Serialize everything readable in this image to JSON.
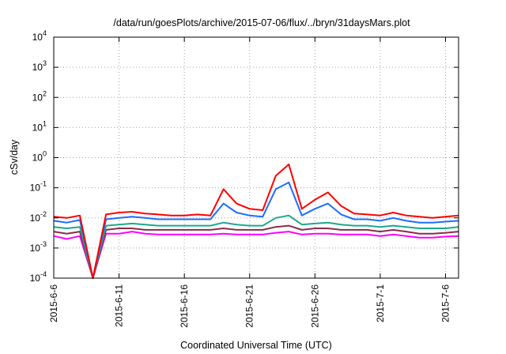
{
  "chart_data": {
    "type": "line",
    "title": "/data/run/goesPlots/archive/2015-07-06/flux/../bryn/31daysMars.plot",
    "xlabel": "Coordinated Universal Time (UTC)",
    "ylabel": "cSv/day",
    "yscale": "log",
    "ylim_exponents": [
      -4,
      4
    ],
    "yticks": [
      {
        "base": "10",
        "exp": "4"
      },
      {
        "base": "10",
        "exp": "3"
      },
      {
        "base": "10",
        "exp": "2"
      },
      {
        "base": "10",
        "exp": "1"
      },
      {
        "base": "10",
        "exp": "0"
      },
      {
        "base": "10",
        "exp": "-1"
      },
      {
        "base": "10",
        "exp": "-2"
      },
      {
        "base": "10",
        "exp": "-3"
      },
      {
        "base": "10",
        "exp": "-4"
      }
    ],
    "xlim": [
      "2015-06-06",
      "2015-07-07"
    ],
    "xticks": [
      {
        "label": "2015-6-6",
        "date": "2015-06-06"
      },
      {
        "label": "2015-6-11",
        "date": "2015-06-11"
      },
      {
        "label": "2015-6-16",
        "date": "2015-06-16"
      },
      {
        "label": "2015-6-21",
        "date": "2015-06-21"
      },
      {
        "label": "2015-6-26",
        "date": "2015-06-26"
      },
      {
        "label": "2015-7-1",
        "date": "2015-07-01"
      },
      {
        "label": "2015-7-6",
        "date": "2015-07-06"
      }
    ],
    "grid": true,
    "legend": "none",
    "series": [
      {
        "color": "#ff0000",
        "x": [
          "2015-06-06",
          "2015-06-07",
          "2015-06-08",
          "2015-06-09",
          "2015-06-10",
          "2015-06-11",
          "2015-06-12",
          "2015-06-13",
          "2015-06-14",
          "2015-06-15",
          "2015-06-16",
          "2015-06-17",
          "2015-06-18",
          "2015-06-19",
          "2015-06-20",
          "2015-06-21",
          "2015-06-22",
          "2015-06-23",
          "2015-06-24",
          "2015-06-25",
          "2015-06-26",
          "2015-06-27",
          "2015-06-28",
          "2015-06-29",
          "2015-06-30",
          "2015-07-01",
          "2015-07-02",
          "2015-07-03",
          "2015-07-04",
          "2015-07-05",
          "2015-07-06",
          "2015-07-07"
        ],
        "y": [
          0.011,
          0.01,
          0.012,
          0.0001,
          0.013,
          0.015,
          0.016,
          0.014,
          0.013,
          0.012,
          0.012,
          0.013,
          0.012,
          0.09,
          0.03,
          0.02,
          0.018,
          0.25,
          0.6,
          0.02,
          0.04,
          0.07,
          0.025,
          0.014,
          0.013,
          0.012,
          0.015,
          0.012,
          0.011,
          0.01,
          0.011,
          0.012
        ]
      },
      {
        "color": "#1e6cff",
        "x": [
          "2015-06-06",
          "2015-06-07",
          "2015-06-08",
          "2015-06-09",
          "2015-06-10",
          "2015-06-11",
          "2015-06-12",
          "2015-06-13",
          "2015-06-14",
          "2015-06-15",
          "2015-06-16",
          "2015-06-17",
          "2015-06-18",
          "2015-06-19",
          "2015-06-20",
          "2015-06-21",
          "2015-06-22",
          "2015-06-23",
          "2015-06-24",
          "2015-06-25",
          "2015-06-26",
          "2015-06-27",
          "2015-06-28",
          "2015-06-29",
          "2015-06-30",
          "2015-07-01",
          "2015-07-02",
          "2015-07-03",
          "2015-07-04",
          "2015-07-05",
          "2015-07-06",
          "2015-07-07"
        ],
        "y": [
          0.008,
          0.007,
          0.0085,
          0.0001,
          0.009,
          0.01,
          0.011,
          0.01,
          0.009,
          0.009,
          0.009,
          0.009,
          0.009,
          0.03,
          0.015,
          0.012,
          0.011,
          0.09,
          0.15,
          0.012,
          0.02,
          0.03,
          0.013,
          0.009,
          0.009,
          0.008,
          0.01,
          0.008,
          0.007,
          0.007,
          0.0075,
          0.008
        ]
      },
      {
        "color": "#1fa88a",
        "x": [
          "2015-06-06",
          "2015-06-07",
          "2015-06-08",
          "2015-06-09",
          "2015-06-10",
          "2015-06-11",
          "2015-06-12",
          "2015-06-13",
          "2015-06-14",
          "2015-06-15",
          "2015-06-16",
          "2015-06-17",
          "2015-06-18",
          "2015-06-19",
          "2015-06-20",
          "2015-06-21",
          "2015-06-22",
          "2015-06-23",
          "2015-06-24",
          "2015-06-25",
          "2015-06-26",
          "2015-06-27",
          "2015-06-28",
          "2015-06-29",
          "2015-06-30",
          "2015-07-01",
          "2015-07-02",
          "2015-07-03",
          "2015-07-04",
          "2015-07-05",
          "2015-07-06",
          "2015-07-07"
        ],
        "y": [
          0.005,
          0.0045,
          0.005,
          0.0001,
          0.0055,
          0.006,
          0.0065,
          0.006,
          0.0055,
          0.0055,
          0.0055,
          0.0055,
          0.0055,
          0.007,
          0.006,
          0.0055,
          0.0055,
          0.01,
          0.012,
          0.006,
          0.0065,
          0.007,
          0.006,
          0.0055,
          0.0055,
          0.005,
          0.0055,
          0.005,
          0.0045,
          0.0045,
          0.0045,
          0.005
        ]
      },
      {
        "color": "#8a2d4a",
        "x": [
          "2015-06-06",
          "2015-06-07",
          "2015-06-08",
          "2015-06-09",
          "2015-06-10",
          "2015-06-11",
          "2015-06-12",
          "2015-06-13",
          "2015-06-14",
          "2015-06-15",
          "2015-06-16",
          "2015-06-17",
          "2015-06-18",
          "2015-06-19",
          "2015-06-20",
          "2015-06-21",
          "2015-06-22",
          "2015-06-23",
          "2015-06-24",
          "2015-06-25",
          "2015-06-26",
          "2015-06-27",
          "2015-06-28",
          "2015-06-29",
          "2015-06-30",
          "2015-07-01",
          "2015-07-02",
          "2015-07-03",
          "2015-07-04",
          "2015-07-05",
          "2015-07-06",
          "2015-07-07"
        ],
        "y": [
          0.0035,
          0.003,
          0.0035,
          0.0001,
          0.004,
          0.0045,
          0.0045,
          0.004,
          0.004,
          0.004,
          0.004,
          0.004,
          0.004,
          0.0045,
          0.004,
          0.004,
          0.004,
          0.005,
          0.0055,
          0.004,
          0.0045,
          0.0045,
          0.004,
          0.004,
          0.004,
          0.0035,
          0.004,
          0.0035,
          0.003,
          0.003,
          0.0032,
          0.0035
        ]
      },
      {
        "color": "#ff00ff",
        "x": [
          "2015-06-06",
          "2015-06-07",
          "2015-06-08",
          "2015-06-09",
          "2015-06-10",
          "2015-06-11",
          "2015-06-12",
          "2015-06-13",
          "2015-06-14",
          "2015-06-15",
          "2015-06-16",
          "2015-06-17",
          "2015-06-18",
          "2015-06-19",
          "2015-06-20",
          "2015-06-21",
          "2015-06-22",
          "2015-06-23",
          "2015-06-24",
          "2015-06-25",
          "2015-06-26",
          "2015-06-27",
          "2015-06-28",
          "2015-06-29",
          "2015-06-30",
          "2015-07-01",
          "2015-07-02",
          "2015-07-03",
          "2015-07-04",
          "2015-07-05",
          "2015-07-06",
          "2015-07-07"
        ],
        "y": [
          0.0025,
          0.002,
          0.0025,
          0.0001,
          0.003,
          0.003,
          0.0035,
          0.003,
          0.0028,
          0.0028,
          0.0028,
          0.0028,
          0.0028,
          0.003,
          0.0028,
          0.0028,
          0.0028,
          0.0032,
          0.0035,
          0.0028,
          0.003,
          0.003,
          0.0028,
          0.0028,
          0.0028,
          0.0025,
          0.0028,
          0.0025,
          0.0022,
          0.0022,
          0.0024,
          0.0025
        ]
      }
    ]
  }
}
